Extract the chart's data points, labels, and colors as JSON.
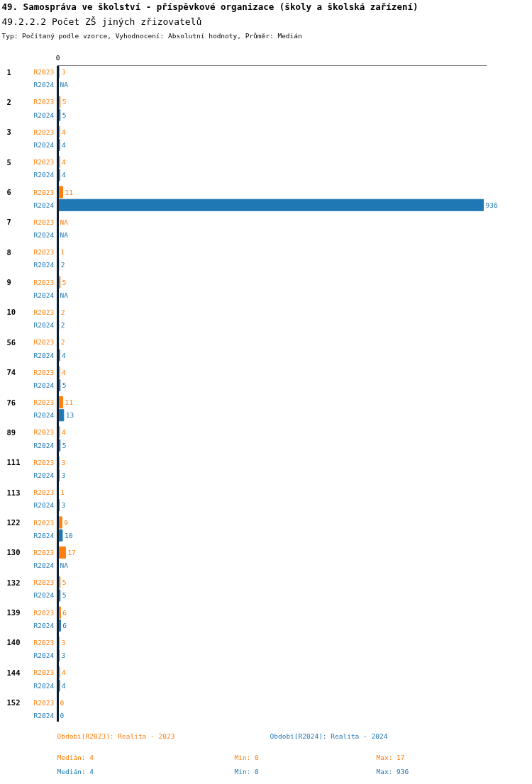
{
  "chart_data": {
    "type": "bar",
    "orientation": "horizontal",
    "title": "49. Samospráva ve školství - příspěvkové organizace (školy a školská zařízení)",
    "subtitle": "49.2.2.2 Počet ZŠ jiných zřizovatelů",
    "annotations": [
      "Typ: Počítaný podle vzorce, Vyhodnocení: Absolutní hodnoty, Průměr: Medián",
      "0",
      "Období[R2023]: Realita - 2023",
      "Období[R2024]: Realita - 2024",
      "Medián: 4",
      "Min: 0",
      "Max: 17",
      "Medián: 4",
      "Min: 0",
      "Max: 936"
    ],
    "categories": [
      "1",
      "2",
      "3",
      "5",
      "6",
      "7",
      "8",
      "9",
      "10",
      "56",
      "74",
      "76",
      "89",
      "111",
      "113",
      "122",
      "130",
      "132",
      "139",
      "140",
      "144",
      "152"
    ],
    "grid": false,
    "series": [
      {
        "name": "R2023",
        "color": "#ff7f0e",
        "values": [
          3,
          5,
          4,
          4,
          11,
          null,
          1,
          5,
          2,
          2,
          4,
          11,
          4,
          3,
          1,
          9,
          17,
          5,
          6,
          3,
          4,
          0
        ],
        "value_labels": [
          "3",
          "5",
          "4",
          "4",
          "11",
          "NA",
          "1",
          "5",
          "2",
          "2",
          "4",
          "11",
          "4",
          "3",
          "1",
          "9",
          "17",
          "5",
          "6",
          "3",
          "4",
          "0"
        ]
      },
      {
        "name": "R2024",
        "color": "#1f77b4",
        "values": [
          null,
          5,
          4,
          4,
          936,
          null,
          2,
          null,
          2,
          4,
          5,
          13,
          5,
          3,
          3,
          10,
          null,
          5,
          6,
          3,
          4,
          0
        ],
        "value_labels": [
          "NA",
          "5",
          "4",
          "4",
          "936",
          "NA",
          "2",
          "NA",
          "2",
          "4",
          "5",
          "13",
          "5",
          "3",
          "3",
          "10",
          "NA",
          "5",
          "6",
          "3",
          "4",
          "0"
        ]
      }
    ]
  }
}
